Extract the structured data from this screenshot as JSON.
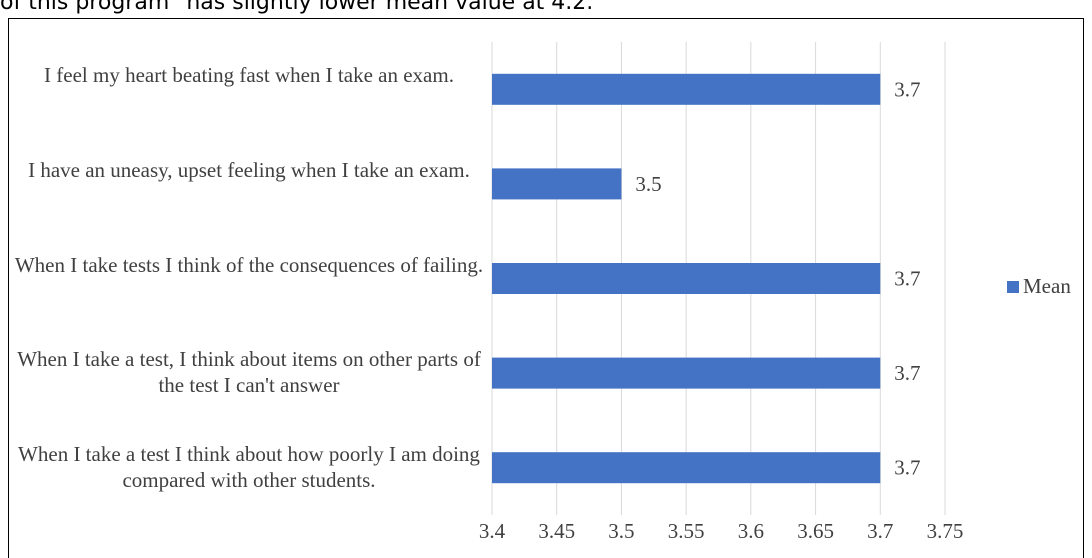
{
  "page": {
    "top_text": "of this program \"has slightly lower mean value at 4.2."
  },
  "colors": {
    "bar": "#4472C4",
    "grid": "#d9d9d9",
    "text": "#404040"
  },
  "chart_data": {
    "type": "bar",
    "orientation": "horizontal",
    "categories": [
      "I feel my heart beating fast when I take an exam.",
      "I have an uneasy, upset feeling when I take an exam.",
      "When I take tests I think of the consequences of failing.",
      "When I take a test, I think about items on other parts of the test I can't answer",
      "When I take a test I think about how poorly I am doing compared with other students."
    ],
    "series": [
      {
        "name": "Mean",
        "values": [
          3.7,
          3.5,
          3.7,
          3.7,
          3.7
        ],
        "labels": [
          "3.7",
          "3.5",
          "3.7",
          "3.7",
          "3.7"
        ]
      }
    ],
    "xlim": [
      3.4,
      3.75
    ],
    "ticks": [
      "3.4",
      "3.45",
      "3.5",
      "3.55",
      "3.6",
      "3.65",
      "3.7",
      "3.75"
    ],
    "title": "",
    "xlabel": "",
    "ylabel": "",
    "grid": true,
    "legend_position": "right"
  }
}
